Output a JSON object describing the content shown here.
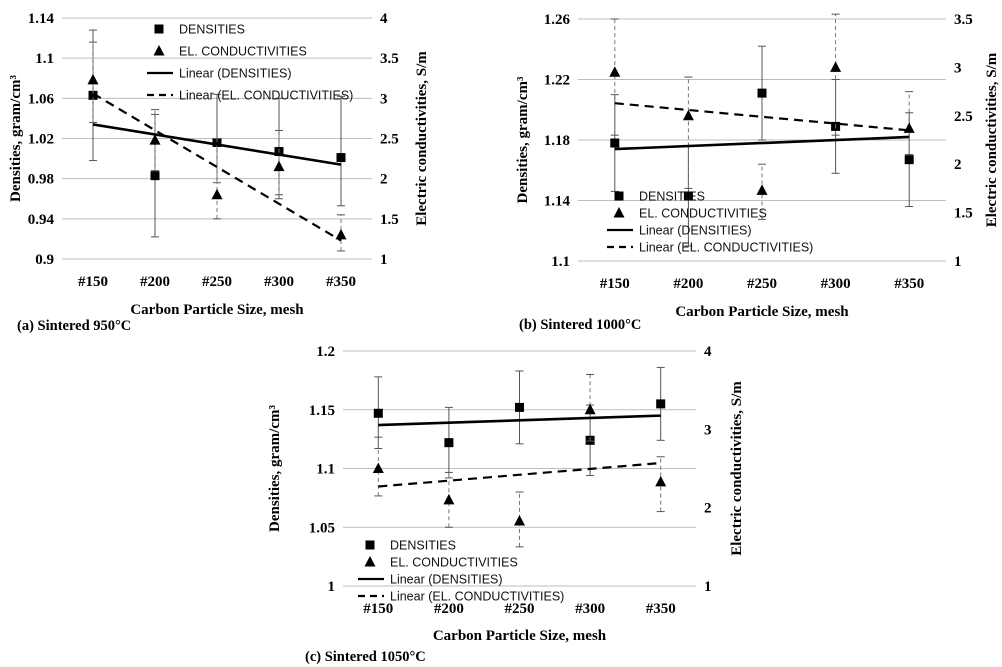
{
  "figure": {
    "categories": [
      "#150",
      "#200",
      "#250",
      "#300",
      "#350"
    ],
    "xlabel": "Carbon Particle Size, mesh",
    "ylabel_left": "Densities, gram/cm³",
    "ylabel_right": "Electric conductivities, S/m",
    "legend": {
      "densities": "DENSITIES",
      "conductivities": "EL. CONDUCTIVITIES",
      "linear_densities": "Linear (DENSITIES)",
      "linear_conductivities": "Linear (EL. CONDUCTIVITIES)"
    },
    "colors": {
      "marks": "#000000",
      "grid": "#bdbdbd"
    }
  },
  "chart_data": [
    {
      "type": "scatter",
      "caption": "(a) Sintered 950°C",
      "categories": [
        "#150",
        "#200",
        "#250",
        "#300",
        "#350"
      ],
      "xlabel": "Carbon Particle Size, mesh",
      "ylabel": "Densities, gram/cm³",
      "ylabel_right": "Electric conductivities, S/m",
      "ylim": [
        0.9,
        1.14
      ],
      "yticks": [
        0.9,
        0.94,
        0.98,
        1.02,
        1.06,
        1.1,
        1.14
      ],
      "ylim_right": [
        1,
        4
      ],
      "yticks_right": [
        1,
        1.5,
        2,
        2.5,
        3,
        3.5,
        4
      ],
      "grid": true,
      "legend_position": "top-left",
      "series": [
        {
          "name": "DENSITIES",
          "axis": "left",
          "marker": "square",
          "values": [
            1.063,
            0.983,
            1.016,
            1.007,
            1.001
          ],
          "err_low": [
            0.998,
            0.922,
            0.976,
            0.96,
            0.953
          ],
          "err_high": [
            1.128,
            1.044,
            1.064,
            1.06,
            1.062
          ]
        },
        {
          "name": "EL. CONDUCTIVITIES",
          "axis": "right",
          "marker": "triangle",
          "values": [
            3.23,
            2.48,
            1.8,
            2.15,
            1.3
          ],
          "err_low": [
            2.7,
            2.1,
            1.5,
            1.8,
            1.1
          ],
          "err_high": [
            3.7,
            2.86,
            2.5,
            2.6,
            1.55
          ]
        },
        {
          "name": "Linear (DENSITIES)",
          "axis": "left",
          "style": "solid",
          "values": [
            1.034,
            1.024,
            1.014,
            1.004,
            0.994
          ]
        },
        {
          "name": "Linear (EL. CONDUCTIVITIES)",
          "axis": "right",
          "style": "dashed",
          "values": [
            3.06,
            2.6,
            2.14,
            1.69,
            1.23
          ]
        }
      ]
    },
    {
      "type": "scatter",
      "caption": "(b) Sintered 1000°C",
      "categories": [
        "#150",
        "#200",
        "#250",
        "#300",
        "#350"
      ],
      "xlabel": "Carbon Particle Size, mesh",
      "ylabel": "Densities, gram/cm³",
      "ylabel_right": "Electric conductivities, S/m",
      "ylim": [
        1.1,
        1.26
      ],
      "yticks": [
        1.1,
        1.14,
        1.18,
        1.22,
        1.26
      ],
      "ylim_right": [
        1,
        3.5
      ],
      "yticks_right": [
        1,
        1.5,
        2,
        2.5,
        3,
        3.5
      ],
      "grid": true,
      "legend_position": "bottom-left",
      "series": [
        {
          "name": "DENSITIES",
          "axis": "left",
          "marker": "square",
          "values": [
            1.178,
            1.143,
            1.211,
            1.189,
            1.167
          ],
          "err_low": [
            1.146,
            1.11,
            1.18,
            1.158,
            1.136
          ],
          "err_high": [
            1.21,
            1.176,
            1.242,
            1.22,
            1.198
          ]
        },
        {
          "name": "EL. CONDUCTIVITIES",
          "axis": "right",
          "marker": "triangle",
          "values": [
            2.95,
            2.5,
            1.73,
            3.0,
            2.37
          ],
          "err_low": [
            2.3,
            1.75,
            1.43,
            2.3,
            2.1
          ],
          "err_high": [
            3.5,
            2.9,
            2.0,
            3.55,
            2.75
          ]
        },
        {
          "name": "Linear (DENSITIES)",
          "axis": "left",
          "style": "solid",
          "values": [
            1.174,
            1.176,
            1.178,
            1.18,
            1.182
          ]
        },
        {
          "name": "Linear (EL. CONDUCTIVITIES)",
          "axis": "right",
          "style": "dashed",
          "values": [
            2.63,
            2.56,
            2.49,
            2.42,
            2.35
          ]
        }
      ]
    },
    {
      "type": "scatter",
      "caption": "(c) Sintered 1050°C",
      "categories": [
        "#150",
        "#200",
        "#250",
        "#300",
        "#350"
      ],
      "xlabel": "Carbon Particle Size, mesh",
      "ylabel": "Densities, gram/cm³",
      "ylabel_right": "Electric conductivities, S/m",
      "ylim": [
        1,
        1.2
      ],
      "yticks": [
        1,
        1.05,
        1.1,
        1.15,
        1.2
      ],
      "ylim_right": [
        1,
        4
      ],
      "yticks_right": [
        1,
        2,
        3,
        4
      ],
      "grid": true,
      "legend_position": "bottom-left",
      "series": [
        {
          "name": "DENSITIES",
          "axis": "left",
          "marker": "square",
          "values": [
            1.147,
            1.122,
            1.152,
            1.124,
            1.155
          ],
          "err_low": [
            1.117,
            1.092,
            1.121,
            1.094,
            1.124
          ],
          "err_high": [
            1.178,
            1.152,
            1.183,
            1.154,
            1.186
          ]
        },
        {
          "name": "EL. CONDUCTIVITIES",
          "axis": "right",
          "marker": "triangle",
          "values": [
            2.5,
            2.1,
            1.83,
            3.25,
            2.33
          ],
          "err_low": [
            2.15,
            1.75,
            1.5,
            2.85,
            1.95
          ],
          "err_high": [
            2.9,
            2.45,
            2.2,
            3.7,
            2.65
          ]
        },
        {
          "name": "Linear (DENSITIES)",
          "axis": "left",
          "style": "solid",
          "values": [
            1.137,
            1.139,
            1.141,
            1.143,
            1.145
          ]
        },
        {
          "name": "Linear (EL. CONDUCTIVITIES)",
          "axis": "right",
          "style": "dashed",
          "values": [
            2.27,
            2.34,
            2.42,
            2.49,
            2.57
          ]
        }
      ]
    }
  ]
}
